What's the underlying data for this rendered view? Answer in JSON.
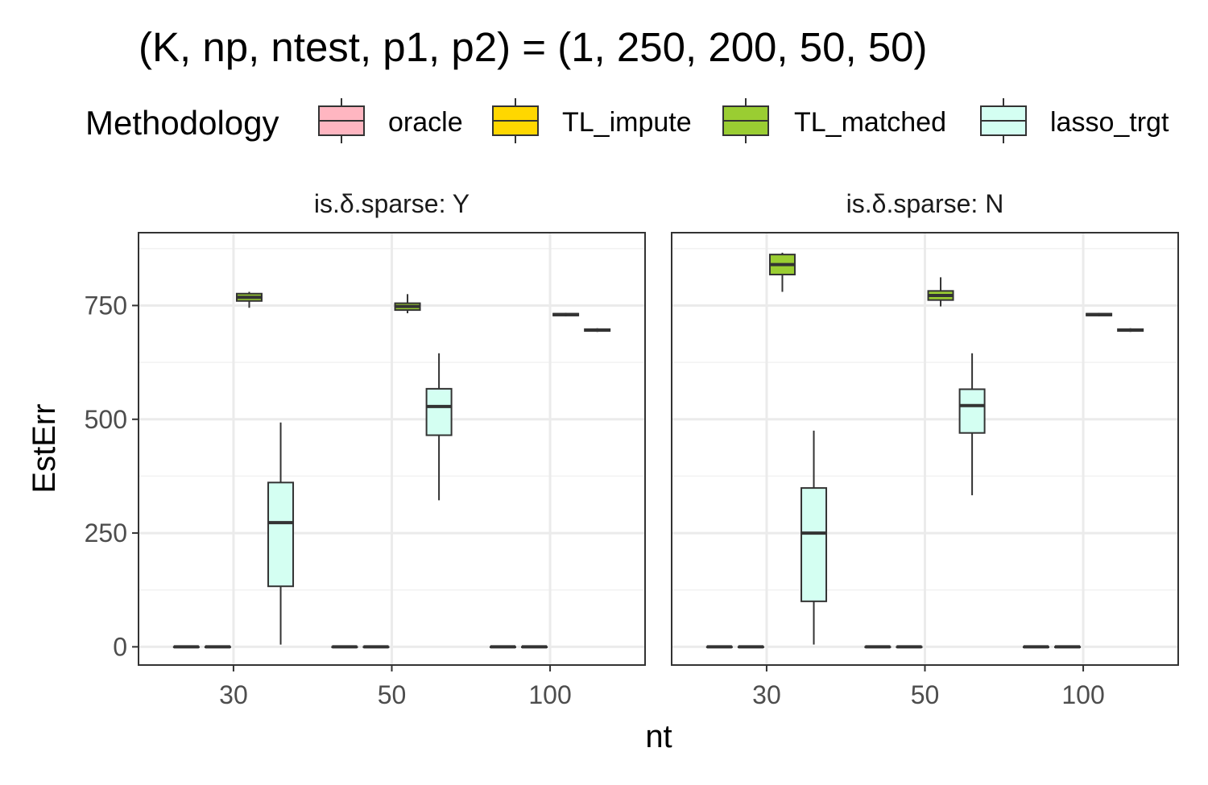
{
  "chart_data": {
    "type": "boxplot",
    "title": "(K, np, ntest, p1, p2) = (1, 250, 200, 50, 50)",
    "xlabel": "nt",
    "ylabel": "EstErr",
    "categories": [
      "30",
      "50",
      "100"
    ],
    "ylim": [
      -40,
      910
    ],
    "yticks": [
      0,
      250,
      500,
      750
    ],
    "yminor": [
      125,
      375,
      625,
      875
    ],
    "legend": {
      "title": "Methodology",
      "position": "top",
      "items": [
        {
          "name": "oracle",
          "color": "#FFB6C1"
        },
        {
          "name": "TL_impute",
          "color": "#FFD700"
        },
        {
          "name": "TL_matched",
          "color": "#9ACD32"
        },
        {
          "name": "lasso_trgt",
          "color": "#D4FFF2"
        }
      ]
    },
    "facets": [
      {
        "label": "is.δ.sparse: Y",
        "series": [
          {
            "name": "oracle",
            "boxes": [
              {
                "min": 0,
                "q1": 0,
                "median": 0,
                "q3": 0,
                "max": 0
              },
              {
                "min": 0,
                "q1": 0,
                "median": 0,
                "q3": 0,
                "max": 0
              },
              {
                "min": 0,
                "q1": 0,
                "median": 0,
                "q3": 0,
                "max": 0
              }
            ]
          },
          {
            "name": "TL_impute",
            "boxes": [
              {
                "min": 0,
                "q1": 0,
                "median": 0,
                "q3": 0,
                "max": 0
              },
              {
                "min": 0,
                "q1": 0,
                "median": 0,
                "q3": 0,
                "max": 0
              },
              {
                "min": 0,
                "q1": 0,
                "median": 0,
                "q3": 0,
                "max": 0
              }
            ]
          },
          {
            "name": "TL_matched",
            "boxes": [
              {
                "min": 745,
                "q1": 760,
                "median": 768,
                "q3": 776,
                "max": 780
              },
              {
                "min": 733,
                "q1": 740,
                "median": 748,
                "q3": 755,
                "max": 775
              },
              {
                "min": 726,
                "q1": 728,
                "median": 730,
                "q3": 732,
                "max": 734
              }
            ]
          },
          {
            "name": "lasso_trgt",
            "boxes": [
              {
                "min": 5,
                "q1": 133,
                "median": 273,
                "q3": 361,
                "max": 493
              },
              {
                "min": 322,
                "q1": 465,
                "median": 528,
                "q3": 567,
                "max": 645
              },
              {
                "min": 692,
                "q1": 694,
                "median": 696,
                "q3": 698,
                "max": 700
              }
            ]
          }
        ]
      },
      {
        "label": "is.δ.sparse: N",
        "series": [
          {
            "name": "oracle",
            "boxes": [
              {
                "min": 0,
                "q1": 0,
                "median": 0,
                "q3": 0,
                "max": 0
              },
              {
                "min": 0,
                "q1": 0,
                "median": 0,
                "q3": 0,
                "max": 0
              },
              {
                "min": 0,
                "q1": 0,
                "median": 0,
                "q3": 0,
                "max": 0
              }
            ]
          },
          {
            "name": "TL_impute",
            "boxes": [
              {
                "min": 0,
                "q1": 0,
                "median": 0,
                "q3": 0,
                "max": 0
              },
              {
                "min": 0,
                "q1": 0,
                "median": 0,
                "q3": 0,
                "max": 0
              },
              {
                "min": 0,
                "q1": 0,
                "median": 0,
                "q3": 0,
                "max": 0
              }
            ]
          },
          {
            "name": "TL_matched",
            "boxes": [
              {
                "min": 780,
                "q1": 818,
                "median": 840,
                "q3": 862,
                "max": 866
              },
              {
                "min": 748,
                "q1": 762,
                "median": 772,
                "q3": 782,
                "max": 812
              },
              {
                "min": 726,
                "q1": 728,
                "median": 730,
                "q3": 732,
                "max": 734
              }
            ]
          },
          {
            "name": "lasso_trgt",
            "boxes": [
              {
                "min": 5,
                "q1": 100,
                "median": 250,
                "q3": 349,
                "max": 475
              },
              {
                "min": 333,
                "q1": 470,
                "median": 530,
                "q3": 566,
                "max": 645
              },
              {
                "min": 692,
                "q1": 694,
                "median": 696,
                "q3": 698,
                "max": 700
              }
            ]
          }
        ]
      }
    ]
  }
}
